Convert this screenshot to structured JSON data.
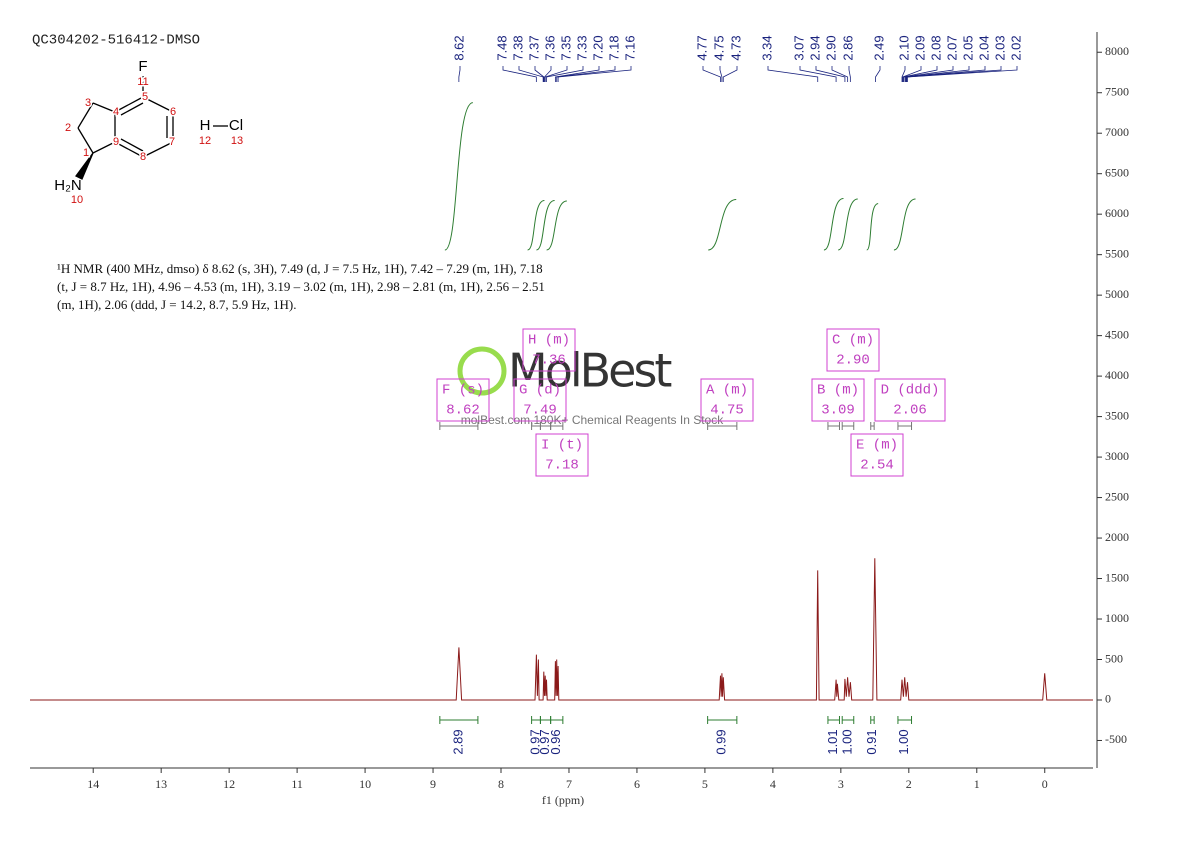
{
  "chart_data": {
    "type": "nmr",
    "title": "QC304202-516412-DMSO",
    "x_label": "f1 (ppm)",
    "xlim": [
      14.93,
      -0.71
    ],
    "xticks": [
      14,
      13,
      12,
      11,
      10,
      9,
      8,
      7,
      6,
      5,
      4,
      3,
      2,
      1,
      0
    ],
    "ylim": [
      -840,
      8250
    ],
    "yticks": [
      -500,
      0,
      500,
      1000,
      1500,
      2000,
      2500,
      3000,
      3500,
      4000,
      4500,
      5000,
      5500,
      6000,
      6500,
      7000,
      7500,
      8000
    ],
    "color": "#8b1a1a",
    "series": [
      {
        "x": [
          14.93,
          8.66,
          8.62,
          8.58,
          7.5,
          7.48,
          7.465,
          7.45,
          7.44,
          7.38,
          7.37,
          7.36,
          7.35,
          7.34,
          7.33,
          7.32,
          7.21,
          7.2,
          7.19,
          7.18,
          7.17,
          7.16,
          7.15,
          4.79,
          4.77,
          4.76,
          4.75,
          4.74,
          4.73,
          4.71,
          3.36,
          3.34,
          3.32,
          3.09,
          3.07,
          3.06,
          3.05,
          3.03,
          2.95,
          2.94,
          2.92,
          2.9,
          2.88,
          2.86,
          2.84,
          2.53,
          2.5,
          2.47,
          2.12,
          2.1,
          2.08,
          2.06,
          2.04,
          2.02,
          2.0,
          0.03,
          0.0,
          -0.03,
          -0.71
        ],
        "values": [
          0,
          0,
          650,
          0,
          0,
          560,
          50,
          500,
          0,
          0,
          350,
          50,
          300,
          50,
          250,
          0,
          0,
          480,
          50,
          500,
          50,
          420,
          0,
          0,
          300,
          40,
          330,
          40,
          280,
          0,
          0,
          1600,
          0,
          0,
          250,
          40,
          200,
          0,
          0,
          260,
          40,
          280,
          40,
          220,
          0,
          0,
          1750,
          0,
          0,
          250,
          40,
          280,
          40,
          220,
          0,
          0,
          330,
          0,
          0
        ]
      }
    ],
    "peak_labels": [
      "8.62",
      "7.48",
      "7.38",
      "7.37",
      "7.36",
      "7.35",
      "7.33",
      "7.20",
      "7.18",
      "7.16",
      "4.77",
      "4.75",
      "4.73",
      "3.34",
      "3.07",
      "2.94",
      "2.90",
      "2.86",
      "2.49",
      "2.10",
      "2.09",
      "2.08",
      "2.07",
      "2.05",
      "2.04",
      "2.03",
      "2.02"
    ],
    "integrals": {
      "values": [
        2.89,
        0.97,
        0.97,
        0.96,
        0.99,
        1.01,
        1.0,
        0.91,
        1.0
      ],
      "value_labels": [
        "2.89",
        "0.97",
        "0.97",
        "0.96",
        "0.99",
        "1.01",
        "1.00",
        "0.91",
        "1.00"
      ],
      "from": [
        8.9,
        7.55,
        7.42,
        7.27,
        4.96,
        3.19,
        2.98,
        2.56,
        2.16
      ],
      "to": [
        8.34,
        7.42,
        7.27,
        7.09,
        4.53,
        3.02,
        2.81,
        2.51,
        1.96
      ]
    },
    "multiplets": [
      {
        "label": "F (s)",
        "shift": "8.62"
      },
      {
        "label": "G (d)",
        "shift": "7.49"
      },
      {
        "label": "H (m)",
        "shift": "7.36"
      },
      {
        "label": "I (t)",
        "shift": "7.18"
      },
      {
        "label": "A (m)",
        "shift": "4.75"
      },
      {
        "label": "B (m)",
        "shift": "3.09"
      },
      {
        "label": "C (m)",
        "shift": "2.90"
      },
      {
        "label": "D (ddd)",
        "shift": "2.06"
      },
      {
        "label": "E (m)",
        "shift": "2.54"
      }
    ],
    "description": [
      "¹H NMR (400 MHz, dmso) δ 8.62 (s, 3H), 7.49 (d, J = 7.5 Hz, 1H), 7.42 – 7.29 (m, 1H), 7.18",
      "(t, J = 8.7 Hz, 1H), 4.96 – 4.53 (m, 1H), 3.19 – 3.02 (m, 1H), 2.98 – 2.81 (m, 1H), 2.56 – 2.51",
      "(m, 1H), 2.06 (ddd, J = 14.2, 8.7, 5.9 Hz, 1H)."
    ],
    "watermark": {
      "brand": "MolBest",
      "tagline": "molBest.com,180K+ Chemical Reagents In Stock"
    }
  },
  "structure": {
    "atoms": [
      "F",
      "H₂N",
      "H",
      "Cl"
    ],
    "numbers": [
      "11",
      "5",
      "6",
      "4",
      "3",
      "2",
      "9",
      "7",
      "1",
      "8",
      "10",
      "12",
      "13"
    ]
  }
}
